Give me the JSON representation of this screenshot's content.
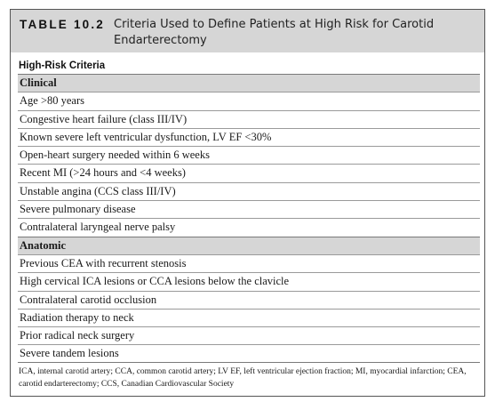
{
  "table": {
    "label": "TABLE 10.2",
    "title": "Criteria Used to Define Patients at High Risk for Carotid Endarterectomy",
    "column_header": "High-Risk Criteria",
    "sections": [
      {
        "name": "Clinical",
        "items": [
          "Age >80 years",
          "Congestive heart failure (class III/IV)",
          "Known severe left ventricular dysfunction, LV EF <30%",
          "Open-heart surgery needed within 6 weeks",
          "Recent MI (>24 hours and <4 weeks)",
          "Unstable angina (CCS class III/IV)",
          "Severe pulmonary disease",
          "Contralateral laryngeal nerve palsy"
        ]
      },
      {
        "name": "Anatomic",
        "items": [
          "Previous CEA with recurrent stenosis",
          "High cervical ICA lesions or CCA lesions below the clavicle",
          "Contralateral carotid occlusion",
          "Radiation therapy to neck",
          "Prior radical neck surgery",
          "Severe tandem lesions"
        ]
      }
    ],
    "footnote": "ICA, internal carotid artery; CCA, common carotid artery; LV EF, left ventricular ejection fraction; MI, myocardial infarction; CEA, carotid endarterectomy; CCS, Canadian Cardiovascular Society"
  }
}
